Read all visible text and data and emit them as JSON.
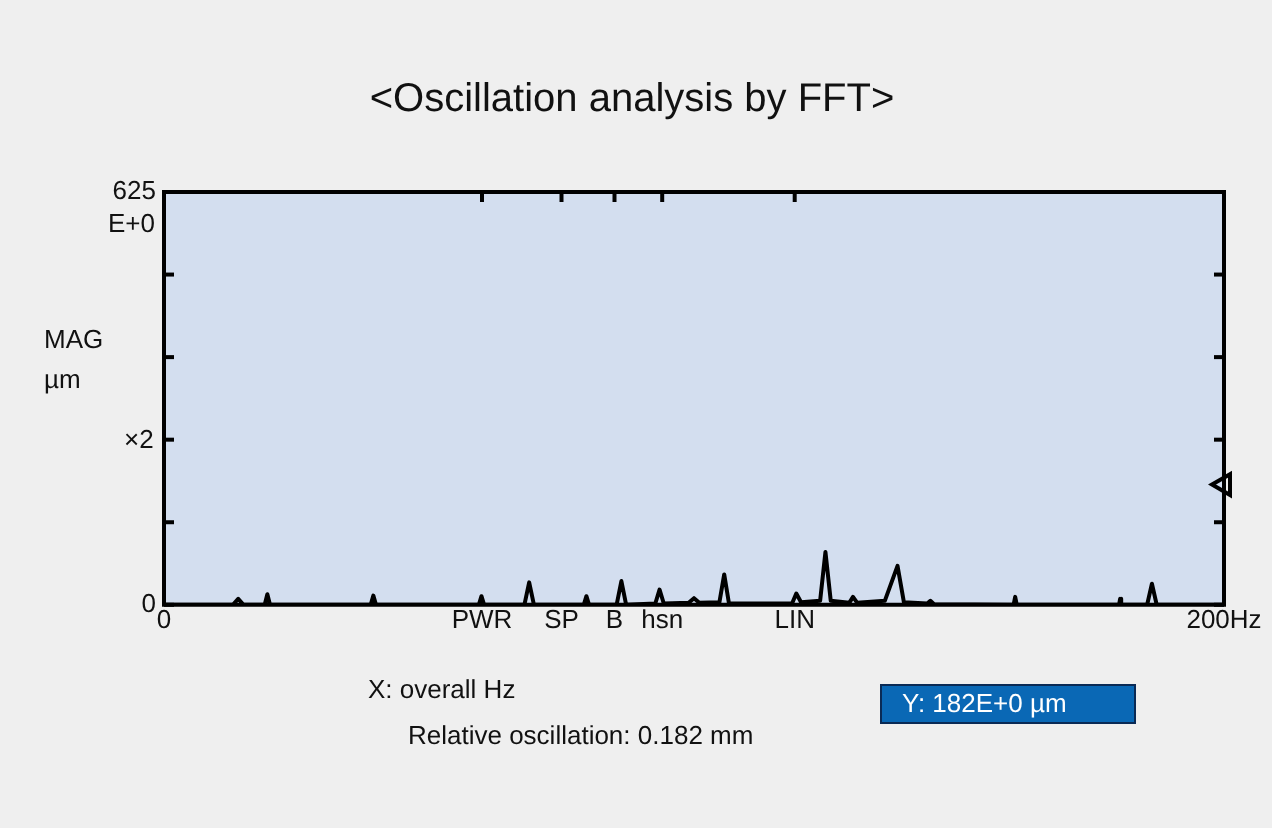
{
  "chart_data": {
    "type": "line",
    "title": "<Oscillation analysis by FFT>",
    "ylabel": "MAG µm ×2",
    "xlim": [
      0,
      200
    ],
    "ylim": [
      0,
      625
    ],
    "xticks": [
      0,
      {
        "value": 60,
        "label": "PWR"
      },
      {
        "value": 75,
        "label": "SP"
      },
      {
        "value": 85,
        "label": "B"
      },
      {
        "value": 94,
        "label": "hsn"
      },
      {
        "value": 119,
        "label": "LIN"
      },
      {
        "value": 200,
        "label": "200Hz"
      }
    ],
    "yticks": [
      0,
      {
        "value": 125,
        "label": null
      },
      {
        "value": 250,
        "label": null
      },
      {
        "value": 375,
        "label": null
      },
      {
        "value": 500,
        "label": null
      },
      625
    ],
    "grid": false,
    "legend": false,
    "marker": "none",
    "line_style": "solid",
    "series": [
      {
        "color": "#000000",
        "x": [
          0,
          13,
          14,
          15,
          19,
          19.5,
          20,
          39,
          39.5,
          40,
          59.4,
          59.9,
          60.4,
          68,
          68.9,
          69.8,
          79.2,
          79.7,
          80.2,
          85.4,
          86.3,
          87.2,
          92.7,
          93.5,
          94.3,
          99,
          100,
          101,
          104.8,
          105.7,
          106.6,
          118.5,
          119.3,
          120.2,
          123.8,
          124.8,
          125.8,
          129.3,
          130,
          130.8,
          136,
          138.4,
          139.6,
          144,
          144.6,
          145.3,
          160.3,
          160.6,
          160.9,
          180.2,
          180.4,
          180.6,
          185.5,
          186.4,
          187.3,
          200
        ],
        "values": [
          0,
          0,
          9,
          0,
          0,
          16,
          0,
          0,
          14,
          0,
          0,
          13,
          0,
          0,
          34,
          0,
          0,
          13,
          0,
          0,
          36,
          0,
          2,
          23,
          2,
          3,
          10,
          3,
          4,
          46,
          2,
          2,
          17,
          4,
          6,
          80,
          6,
          3,
          12,
          3,
          6,
          59,
          4,
          2,
          6,
          1,
          0,
          12,
          0,
          0,
          9,
          0,
          0,
          32,
          0,
          0
        ]
      },
      {
        "type": "scatter",
        "marker": "triangle",
        "color": "#000000",
        "x": [
          200
        ],
        "values": [
          182
        ]
      }
    ],
    "annotations": [
      "X: overall   Hz",
      "Relative oscillation: 0.182 mm",
      "Y: 182E+0 µm",
      "E+0"
    ]
  }
}
